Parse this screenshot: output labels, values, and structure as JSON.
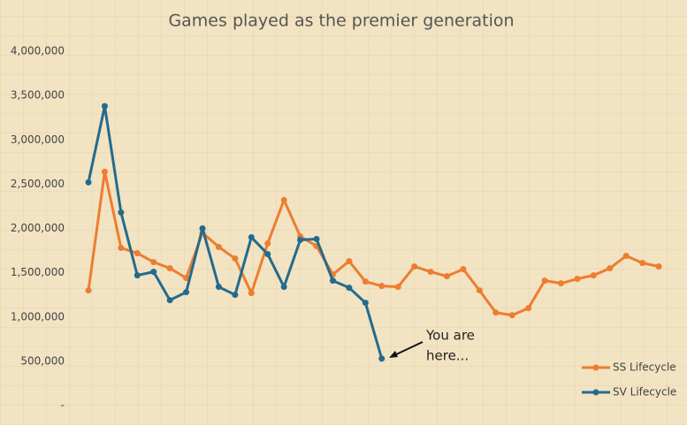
{
  "chart_data": {
    "type": "line",
    "title": "Games played as the premier generation",
    "categories": [
      null,
      null,
      null,
      null,
      null,
      null,
      null,
      null,
      null,
      null,
      null,
      null,
      null,
      null,
      null,
      null,
      null,
      null,
      null,
      null,
      null,
      null,
      null,
      null,
      null,
      null,
      null,
      null,
      null,
      null,
      null,
      null,
      null,
      null,
      null,
      null
    ],
    "series": [
      {
        "name": "SS Lifecycle",
        "color": "#ed7d31",
        "values": [
          1300000,
          2640000,
          1780000,
          1720000,
          1620000,
          1550000,
          1440000,
          1950000,
          1790000,
          1660000,
          1270000,
          1830000,
          2320000,
          1910000,
          1800000,
          1480000,
          1630000,
          1400000,
          1350000,
          1340000,
          1570000,
          1510000,
          1460000,
          1540000,
          1300000,
          1050000,
          1020000,
          1100000,
          1410000,
          1380000,
          1430000,
          1470000,
          1550000,
          1690000,
          1610000,
          1570000
        ]
      },
      {
        "name": "SV Lifecycle",
        "color": "#236b8e",
        "values": [
          2520000,
          3380000,
          2180000,
          1470000,
          1510000,
          1190000,
          1280000,
          2000000,
          1340000,
          1250000,
          1900000,
          1710000,
          1340000,
          1870000,
          1880000,
          1410000,
          1330000,
          1160000,
          530000,
          null,
          null,
          null,
          null,
          null,
          null,
          null,
          null,
          null,
          null,
          null,
          null,
          null,
          null,
          null,
          null,
          null
        ]
      }
    ],
    "ylim": [
      0,
      4000000
    ],
    "yticks": [
      {
        "value": 0,
        "label": "-"
      },
      {
        "value": 500000,
        "label": "500,000"
      },
      {
        "value": 1000000,
        "label": "1,000,000"
      },
      {
        "value": 1500000,
        "label": "1,500,000"
      },
      {
        "value": 2000000,
        "label": "2,000,000"
      },
      {
        "value": 2500000,
        "label": "2,500,000"
      },
      {
        "value": 3000000,
        "label": "3,000,000"
      },
      {
        "value": 3500000,
        "label": "3,500,000"
      },
      {
        "value": 4000000,
        "label": "4,000,000"
      }
    ],
    "grid": false,
    "legend": "lower right",
    "annotation": {
      "lines": [
        "You are",
        "here..."
      ]
    }
  }
}
